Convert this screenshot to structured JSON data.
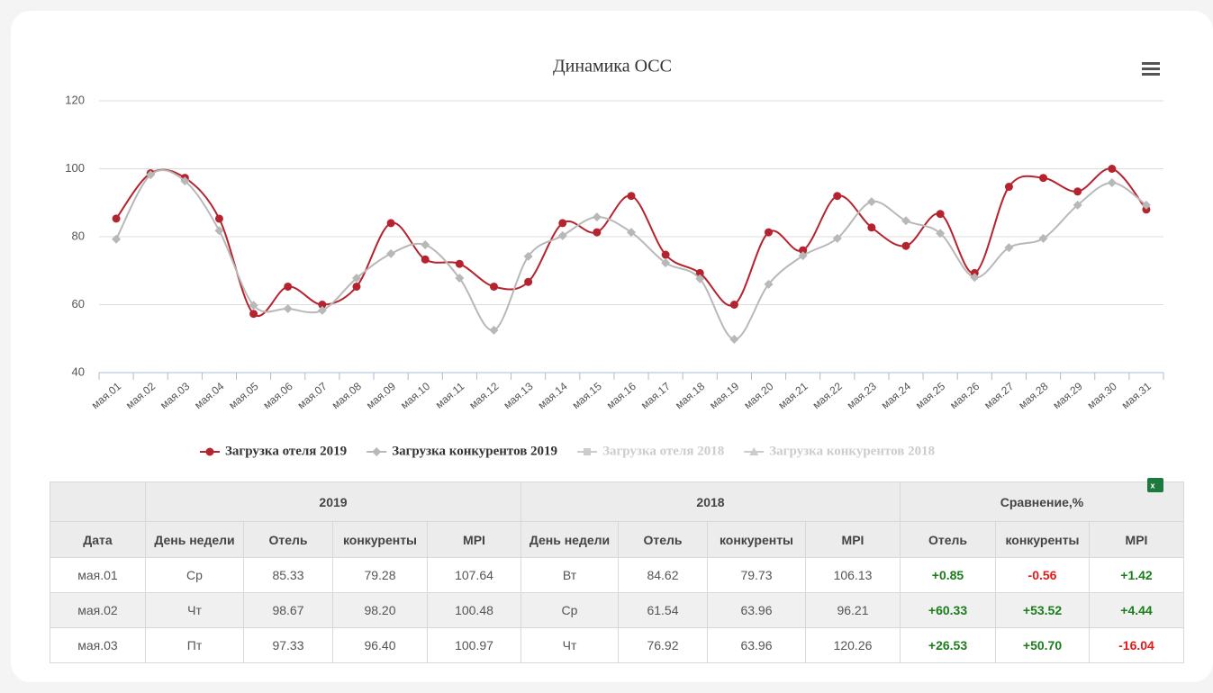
{
  "chart_data": {
    "type": "line",
    "title": "Динамика ОСС",
    "categories": [
      "мая.01",
      "мая.02",
      "мая.03",
      "мая.04",
      "мая.05",
      "мая.06",
      "мая.07",
      "мая.08",
      "мая.09",
      "мая.10",
      "мая.11",
      "мая.12",
      "мая.13",
      "мая.14",
      "мая.15",
      "мая.16",
      "мая.17",
      "мая.18",
      "мая.19",
      "мая.20",
      "мая.21",
      "мая.22",
      "мая.23",
      "мая.24",
      "мая.25",
      "мая.26",
      "мая.27",
      "мая.28",
      "мая.29",
      "мая.30",
      "мая.31"
    ],
    "series": [
      {
        "name": "Загрузка отеля 2019",
        "color": "#b5232f",
        "marker": "circle",
        "visible": true,
        "values": [
          85.33,
          98.67,
          97.33,
          85.3,
          57.3,
          65.3,
          60,
          65.3,
          84,
          73.3,
          72,
          65.3,
          66.7,
          84,
          81.3,
          92,
          74.7,
          69.3,
          60,
          81.3,
          76,
          92,
          82.7,
          77.3,
          86.7,
          69.3,
          94.7,
          97.3,
          93.3,
          100,
          88
        ]
      },
      {
        "name": "Загрузка конкурентов 2019",
        "color": "#b8b8b8",
        "marker": "diamond",
        "visible": true,
        "values": [
          79.28,
          98.2,
          96.4,
          81.8,
          59.8,
          58.8,
          58.3,
          67.8,
          75,
          77.6,
          67.8,
          52.5,
          74.2,
          80.3,
          85.8,
          81.3,
          72.3,
          67.6,
          49.8,
          66,
          74.4,
          79.5,
          90.3,
          84.7,
          81,
          68,
          76.8,
          79.5,
          89.3,
          95.9,
          89.3
        ]
      },
      {
        "name": "Загрузка отеля 2018",
        "color": "#cccccc",
        "marker": "square",
        "visible": false
      },
      {
        "name": "Загрузка конкурентов 2018",
        "color": "#cccccc",
        "marker": "triangle",
        "visible": false
      }
    ],
    "ylim": [
      40,
      120
    ],
    "yticks": [
      40,
      60,
      80,
      100,
      120
    ],
    "grid": true,
    "legend": "bottom"
  },
  "table": {
    "groups": [
      "2019",
      "2018",
      "Сравнение,%"
    ],
    "columns": [
      "Дата",
      "День недели",
      "Отель",
      "конкуренты",
      "MPI",
      "День недели",
      "Отель",
      "конкуренты",
      "MPI",
      "Отель",
      "конкуренты",
      "MPI"
    ],
    "rows": [
      [
        "мая.01",
        "Ср",
        "85.33",
        "79.28",
        "107.64",
        "Вт",
        "84.62",
        "79.73",
        "106.13",
        "+0.85",
        "-0.56",
        "+1.42"
      ],
      [
        "мая.02",
        "Чт",
        "98.67",
        "98.20",
        "100.48",
        "Ср",
        "61.54",
        "63.96",
        "96.21",
        "+60.33",
        "+53.52",
        "+4.44"
      ],
      [
        "мая.03",
        "Пт",
        "97.33",
        "96.40",
        "100.97",
        "Чт",
        "76.92",
        "63.96",
        "120.26",
        "+26.53",
        "+50.70",
        "-16.04"
      ]
    ]
  }
}
